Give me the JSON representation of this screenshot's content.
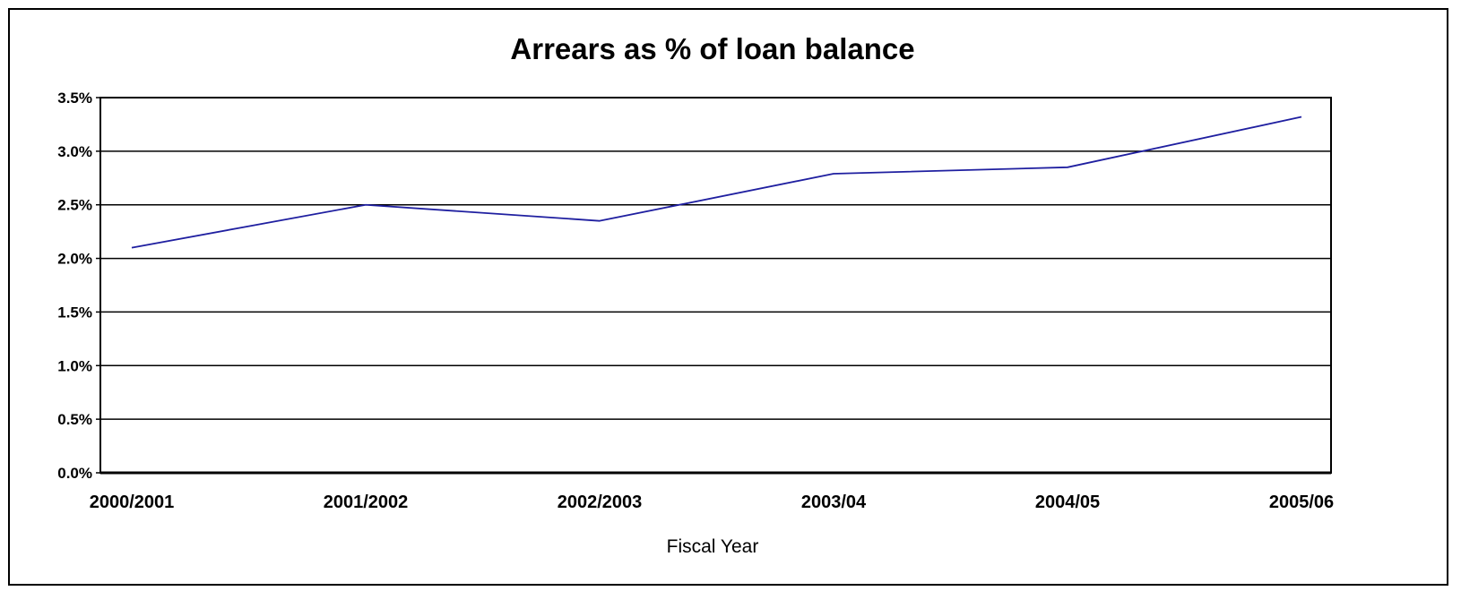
{
  "chart_data": {
    "type": "line",
    "title": "Arrears as % of loan balance",
    "xlabel": "Fiscal Year",
    "ylabel": "",
    "categories": [
      "2000/2001",
      "2001/2002",
      "2002/2003",
      "2003/04",
      "2004/05",
      "2005/06"
    ],
    "series": [
      {
        "values": [
          2.1,
          2.5,
          2.35,
          2.79,
          2.85,
          3.32
        ],
        "color": "#1f1fa0"
      }
    ],
    "ylim": [
      0,
      3.5
    ],
    "y_ticks": [
      0,
      0.5,
      1.0,
      1.5,
      2.0,
      2.5,
      3.0,
      3.5
    ],
    "y_tick_labels": [
      "0.0%",
      "0.5%",
      "1.0%",
      "1.5%",
      "2.0%",
      "2.5%",
      "3.0%",
      "3.5%"
    ],
    "grid": true,
    "legend": "none"
  }
}
